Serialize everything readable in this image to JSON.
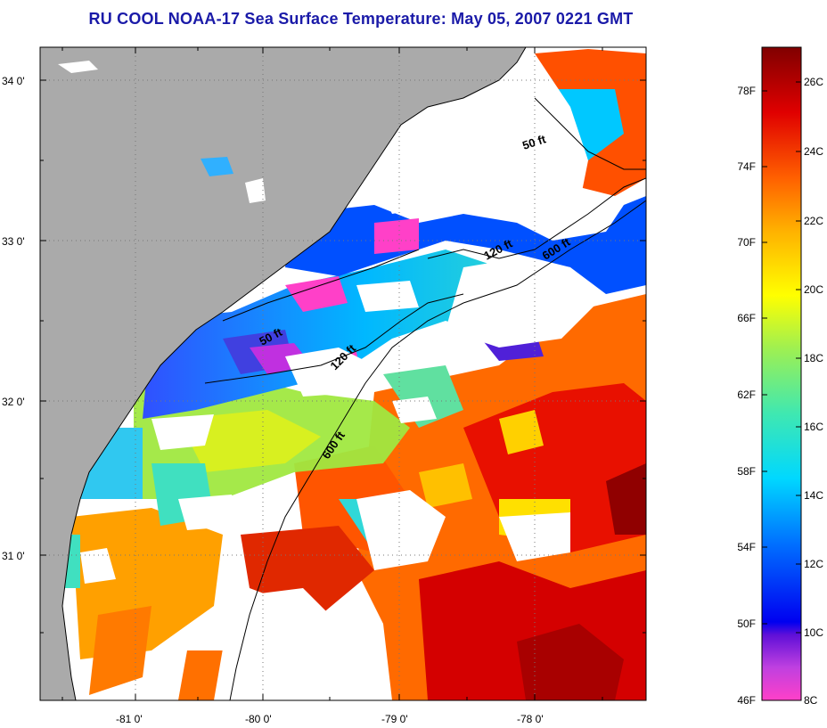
{
  "title": "RU COOL  NOAA-17  Sea Surface Temperature:  May 05, 2007 0221 GMT",
  "map": {
    "lat_ticks": [
      "34 0'",
      "33 0'",
      "32 0'",
      "31 0'"
    ],
    "lon_ticks": [
      "-81 0'",
      "-80 0'",
      "-79 0'",
      "-78 0'"
    ],
    "depth_labels": [
      {
        "id": "upper-50",
        "text": "50 ft"
      },
      {
        "id": "upper-120",
        "text": "120 ft"
      },
      {
        "id": "upper-600",
        "text": "600 ft"
      },
      {
        "id": "lower-50",
        "text": "50 ft"
      },
      {
        "id": "lower-120",
        "text": "120 ft"
      },
      {
        "id": "lower-600",
        "text": "600 ft"
      }
    ],
    "colors": {
      "land": "#aaaaaa",
      "cloud": "#ffffff",
      "frame": "#000000"
    }
  },
  "colorbar": {
    "fahrenheit_labels": [
      "78F",
      "74F",
      "70F",
      "66F",
      "62F",
      "58F",
      "54F",
      "50F",
      "46F"
    ],
    "celsius_labels": [
      "26C",
      "24C",
      "22C",
      "20C",
      "18C",
      "16C",
      "14C",
      "12C",
      "10C",
      "8C"
    ]
  }
}
